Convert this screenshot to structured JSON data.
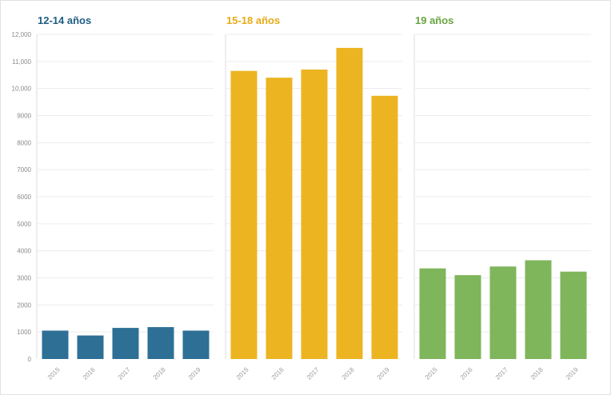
{
  "chart_data": [
    {
      "type": "bar",
      "title": "12-14 años",
      "color": "#2e6f96",
      "categories": [
        "2015",
        "2016",
        "2017",
        "2018",
        "2019"
      ],
      "values": [
        1050,
        870,
        1150,
        1180,
        1050
      ],
      "ylim": [
        0,
        12000
      ]
    },
    {
      "type": "bar",
      "title": "15-18 años",
      "color": "#ecb421",
      "categories": [
        "2015",
        "2016",
        "2017",
        "2018",
        "2019"
      ],
      "values": [
        10650,
        10400,
        10700,
        11500,
        9730
      ],
      "ylim": [
        0,
        12000
      ]
    },
    {
      "type": "bar",
      "title": "19 años",
      "color": "#7fb55b",
      "categories": [
        "2015",
        "2016",
        "2017",
        "2018",
        "2019"
      ],
      "values": [
        3350,
        3100,
        3420,
        3650,
        3230
      ],
      "ylim": [
        0,
        12000
      ]
    }
  ],
  "y_axis": {
    "ticks": [
      0,
      1000,
      2000,
      3000,
      4000,
      5000,
      6000,
      7000,
      8000,
      9000,
      10000,
      11000,
      12000
    ],
    "tick_labels": [
      "0",
      "1000",
      "2000",
      "3000",
      "4000",
      "5000",
      "6000",
      "7000",
      "8000",
      "9000",
      "10,000",
      "11,000",
      "12,000"
    ],
    "gridlines": true
  },
  "colors": {
    "title_1": "#1f5d85",
    "title_2": "#e6ab17",
    "title_3": "#6aa443"
  }
}
